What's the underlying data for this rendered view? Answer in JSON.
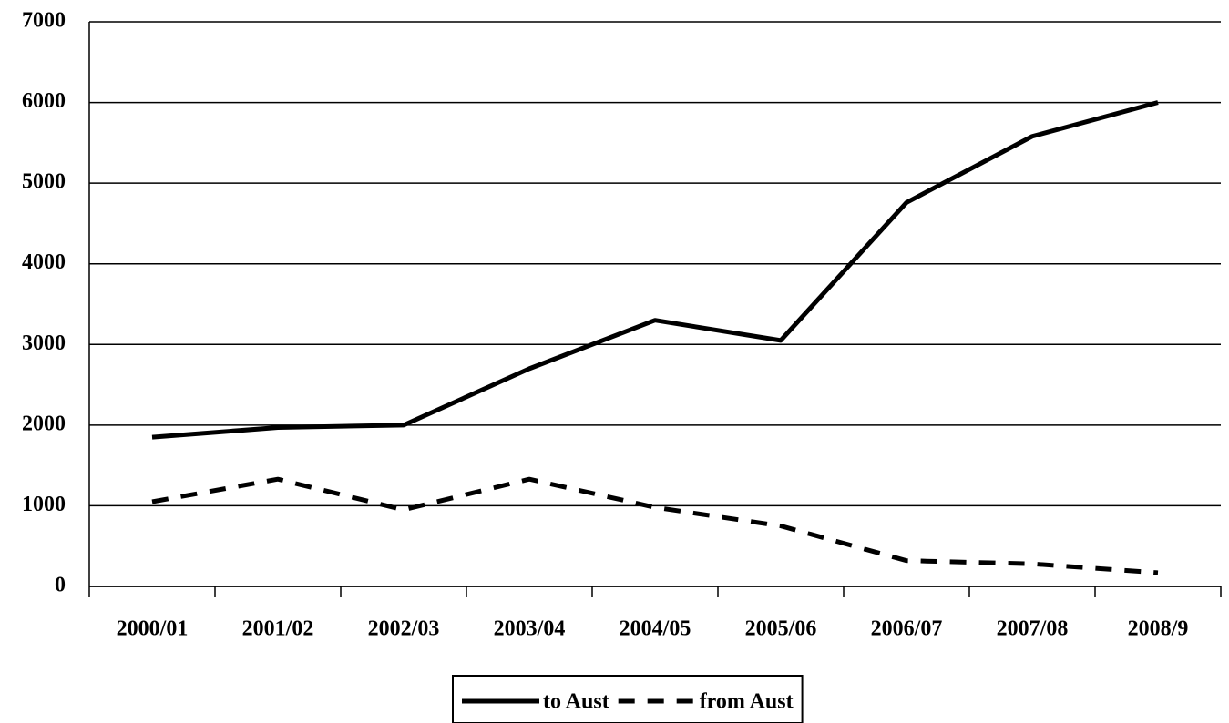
{
  "chart_data": {
    "type": "line",
    "categories": [
      "2000/01",
      "2001/02",
      "2002/03",
      "2003/04",
      "2004/05",
      "2005/06",
      "2006/07",
      "2007/08",
      "2008/9"
    ],
    "series": [
      {
        "name": "to Aust",
        "color": "#000000",
        "style": "solid",
        "values": [
          1850,
          1970,
          2000,
          2700,
          3300,
          3050,
          4760,
          5580,
          6000
        ]
      },
      {
        "name": "from Aust",
        "color": "#000000",
        "style": "dashed",
        "values": [
          1050,
          1330,
          950,
          1330,
          980,
          750,
          320,
          280,
          170
        ]
      }
    ],
    "ylim": [
      0,
      7000
    ],
    "yticks": [
      0,
      1000,
      2000,
      3000,
      4000,
      5000,
      6000,
      7000
    ],
    "grid": true,
    "legend": "bottom"
  }
}
